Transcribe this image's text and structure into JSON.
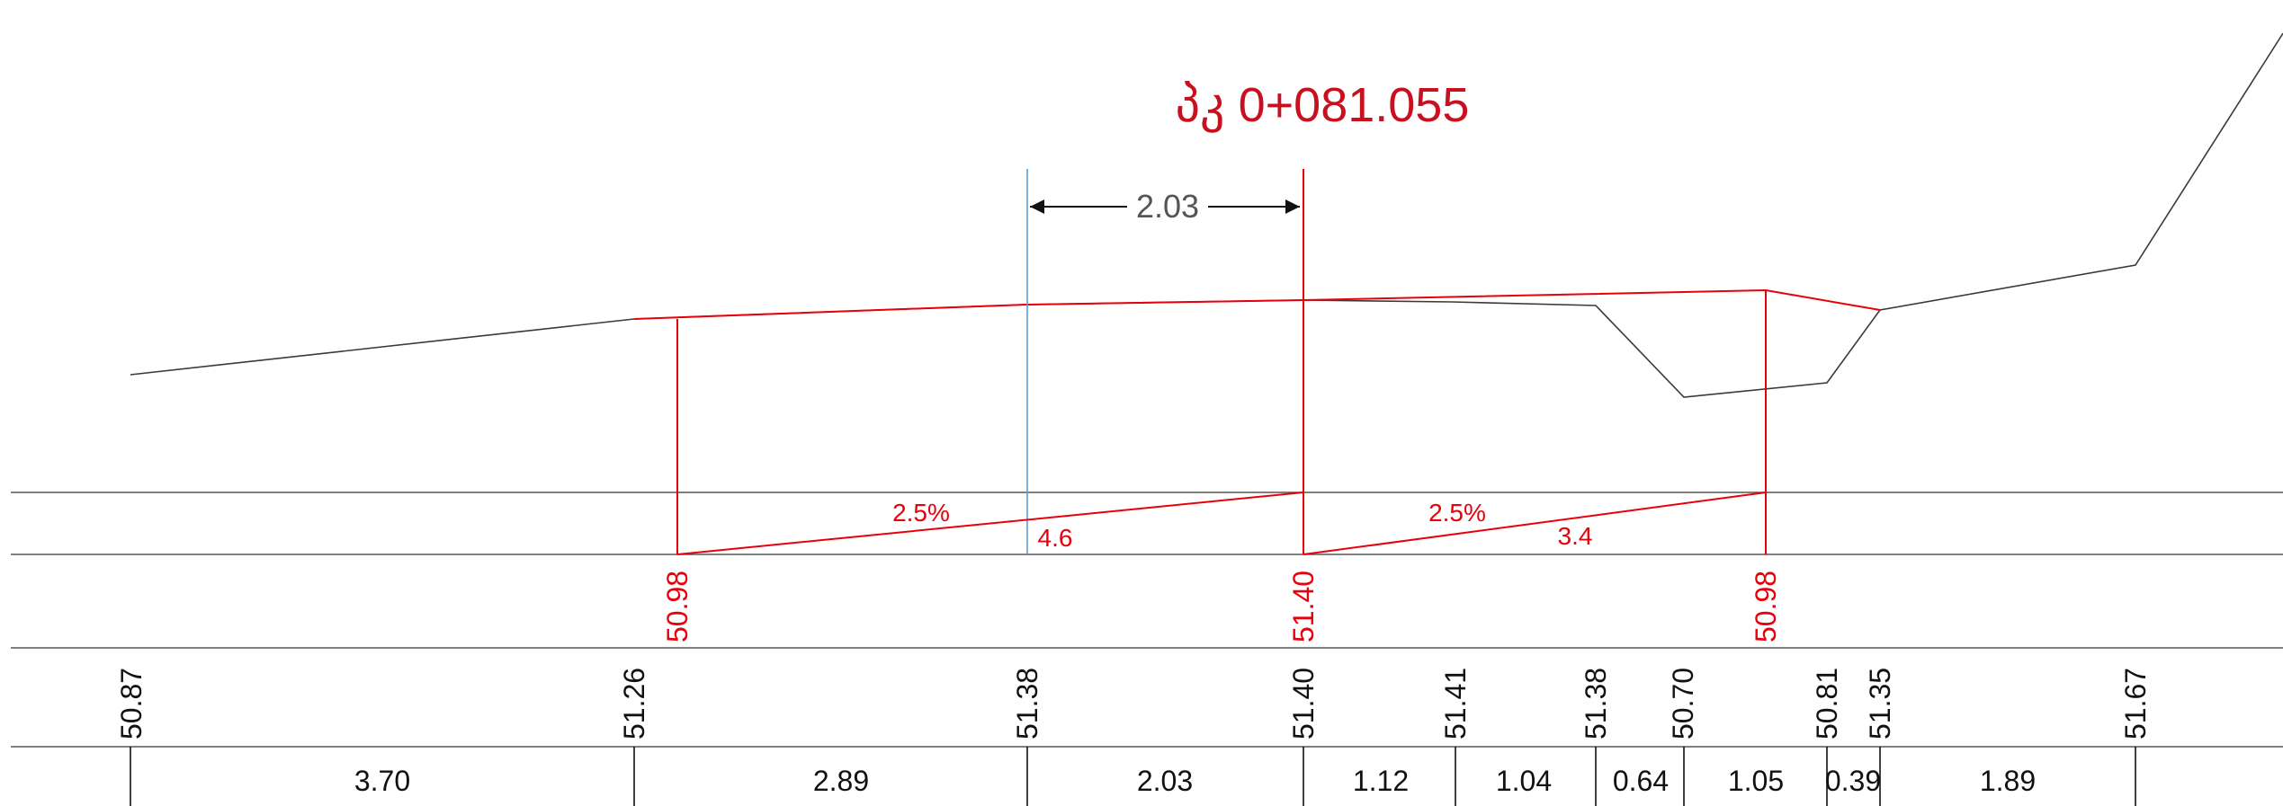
{
  "station_title": "პკ 0+081.055",
  "dimension": {
    "value": "2.03"
  },
  "slopes": [
    {
      "percent": "2.5%",
      "length": "4.6"
    },
    {
      "percent": "2.5%",
      "length": "3.4"
    }
  ],
  "design_elevations": [
    "50.98",
    "51.40",
    "50.98"
  ],
  "ground_elevations": [
    "50.87",
    "51.26",
    "51.38",
    "51.40",
    "51.41",
    "51.38",
    "50.70",
    "50.81",
    "51.35",
    "51.67"
  ],
  "distances": [
    "3.70",
    "2.89",
    "2.03",
    "1.12",
    "1.04",
    "0.64",
    "1.05",
    "0.39",
    "1.89"
  ],
  "colors": {
    "design": "#e8000b",
    "ground": "#3a3a3a",
    "axis": "#5b9bd5",
    "title": "#c8101e",
    "dim": "#111111"
  }
}
